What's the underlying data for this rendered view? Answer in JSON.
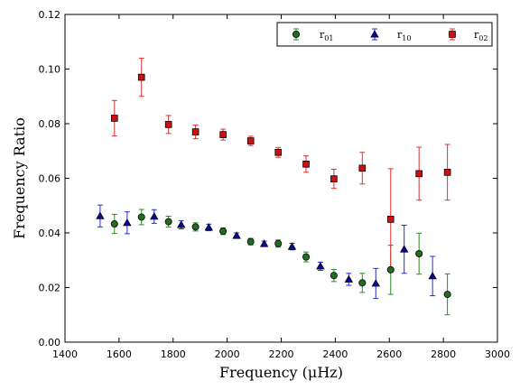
{
  "chart_data": {
    "type": "scatter",
    "xlabel": "Frequency  (μHz)",
    "ylabel": "Frequency Ratio",
    "xlim": [
      1400,
      3000
    ],
    "ylim": [
      0.0,
      0.12
    ],
    "xticks": [
      "1400",
      "1600",
      "1800",
      "2000",
      "2200",
      "2400",
      "2600",
      "2800",
      "3000"
    ],
    "yticks": [
      "0.00",
      "0.02",
      "0.04",
      "0.06",
      "0.08",
      "0.10",
      "0.12"
    ],
    "grid": false,
    "legend_position": "top-right",
    "series": [
      {
        "name": "r01",
        "marker": "circle",
        "color": "#2a8a2a",
        "fill": "#1f6e1f",
        "points": [
          {
            "x": 1583,
            "y": 0.0433,
            "err": 0.0035
          },
          {
            "x": 1683,
            "y": 0.0458,
            "err": 0.0028
          },
          {
            "x": 1783,
            "y": 0.0441,
            "err": 0.002
          },
          {
            "x": 1883,
            "y": 0.0422,
            "err": 0.0015
          },
          {
            "x": 1985,
            "y": 0.0406,
            "err": 0.0012
          },
          {
            "x": 2087,
            "y": 0.0368,
            "err": 0.0012
          },
          {
            "x": 2189,
            "y": 0.0361,
            "err": 0.0013
          },
          {
            "x": 2292,
            "y": 0.0312,
            "err": 0.0018
          },
          {
            "x": 2395,
            "y": 0.0244,
            "err": 0.0022
          },
          {
            "x": 2500,
            "y": 0.0217,
            "err": 0.0035
          },
          {
            "x": 2605,
            "y": 0.0265,
            "err": 0.009
          },
          {
            "x": 2710,
            "y": 0.0324,
            "err": 0.0075
          },
          {
            "x": 2815,
            "y": 0.0175,
            "err": 0.0075
          }
        ]
      },
      {
        "name": "r10",
        "marker": "triangle",
        "color": "#2a2ad0",
        "fill": "#0a0a8a",
        "points": [
          {
            "x": 1530,
            "y": 0.0462,
            "err": 0.004
          },
          {
            "x": 1630,
            "y": 0.0437,
            "err": 0.004
          },
          {
            "x": 1730,
            "y": 0.046,
            "err": 0.0025
          },
          {
            "x": 1830,
            "y": 0.043,
            "err": 0.0015
          },
          {
            "x": 1932,
            "y": 0.042,
            "err": 0.0012
          },
          {
            "x": 2035,
            "y": 0.039,
            "err": 0.001
          },
          {
            "x": 2137,
            "y": 0.036,
            "err": 0.001
          },
          {
            "x": 2240,
            "y": 0.035,
            "err": 0.0012
          },
          {
            "x": 2345,
            "y": 0.0278,
            "err": 0.0015
          },
          {
            "x": 2450,
            "y": 0.023,
            "err": 0.0022
          },
          {
            "x": 2550,
            "y": 0.0215,
            "err": 0.0055
          },
          {
            "x": 2655,
            "y": 0.034,
            "err": 0.0088
          },
          {
            "x": 2760,
            "y": 0.0242,
            "err": 0.0072
          }
        ]
      },
      {
        "name": "r02",
        "marker": "square",
        "color": "#e03030",
        "fill": "#d01010",
        "points": [
          {
            "x": 1583,
            "y": 0.082,
            "err": 0.0065
          },
          {
            "x": 1683,
            "y": 0.097,
            "err": 0.007
          },
          {
            "x": 1783,
            "y": 0.0797,
            "err": 0.0033
          },
          {
            "x": 1883,
            "y": 0.077,
            "err": 0.0025
          },
          {
            "x": 1985,
            "y": 0.076,
            "err": 0.002
          },
          {
            "x": 2087,
            "y": 0.0737,
            "err": 0.0017
          },
          {
            "x": 2189,
            "y": 0.0695,
            "err": 0.0018
          },
          {
            "x": 2292,
            "y": 0.0652,
            "err": 0.003
          },
          {
            "x": 2395,
            "y": 0.0598,
            "err": 0.0035
          },
          {
            "x": 2500,
            "y": 0.0637,
            "err": 0.0058
          },
          {
            "x": 2605,
            "y": 0.045,
            "err": 0.0185
          },
          {
            "x": 2710,
            "y": 0.0617,
            "err": 0.0097
          },
          {
            "x": 2815,
            "y": 0.0622,
            "err": 0.0102
          }
        ]
      }
    ]
  }
}
